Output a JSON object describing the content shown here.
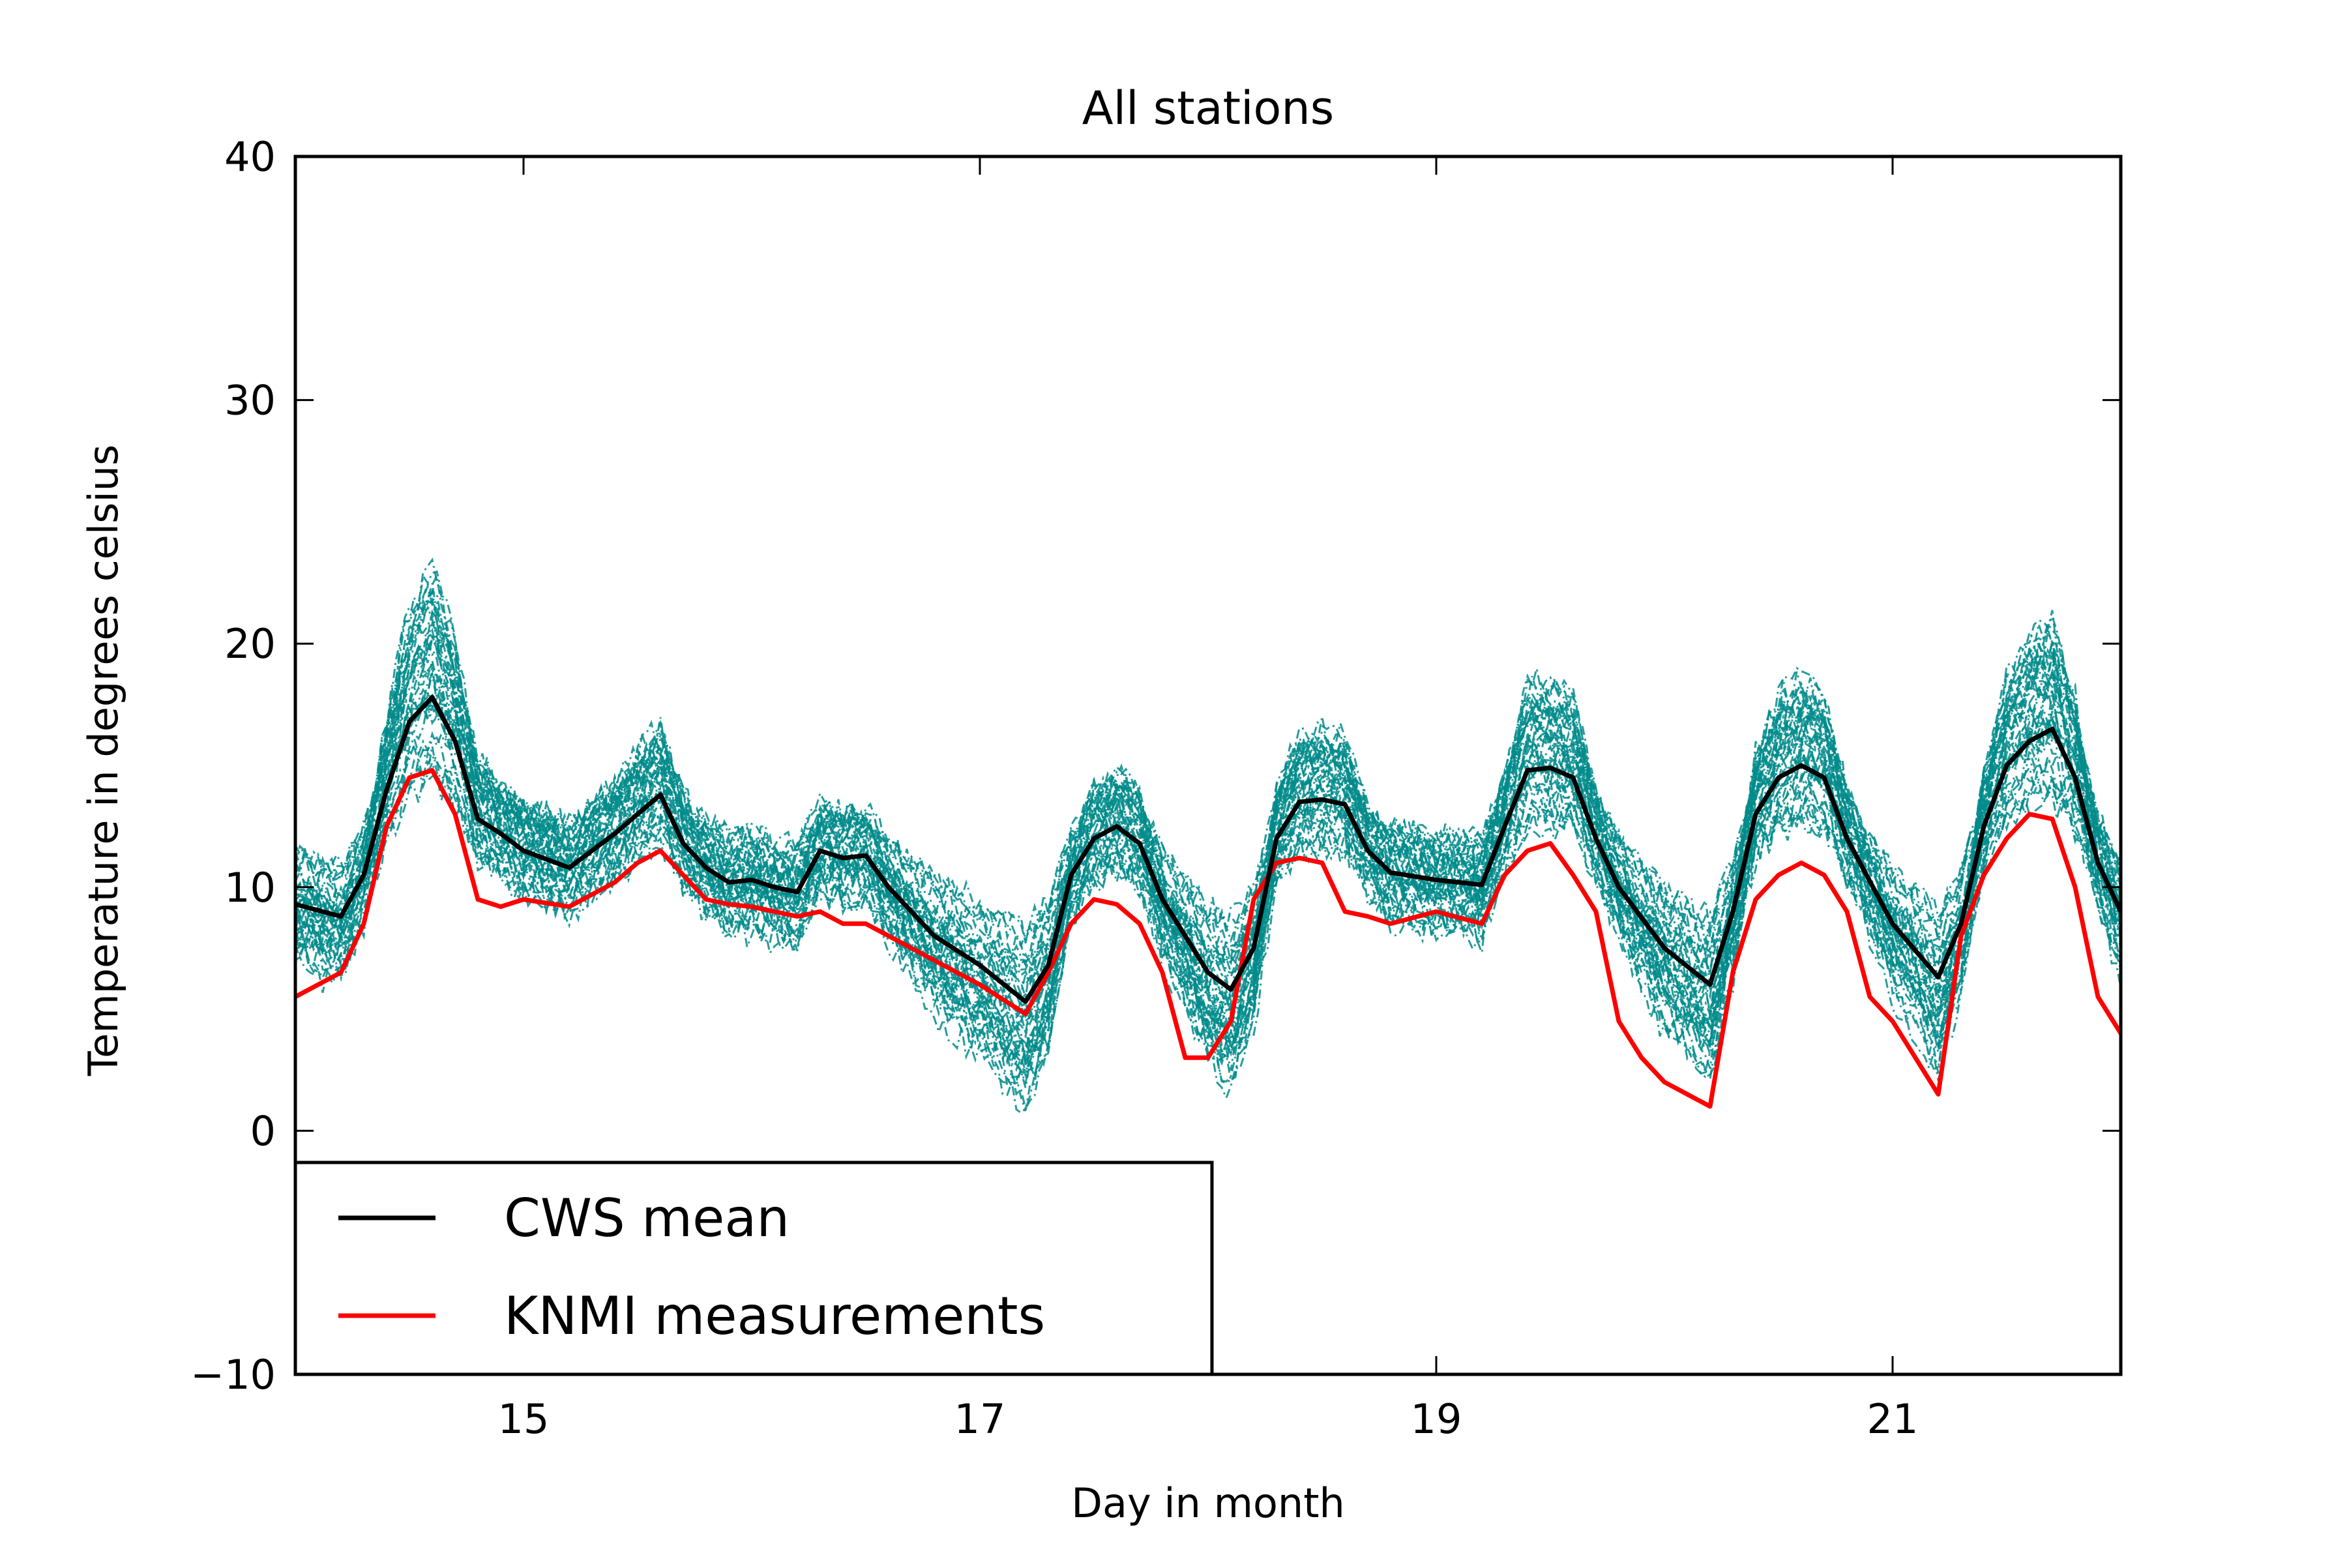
{
  "chart_data": {
    "type": "line",
    "title": "All stations",
    "xlabel": "Day in month",
    "ylabel": "Temperature in degrees celsius",
    "xlim": [
      14,
      22
    ],
    "ylim": [
      -10,
      40
    ],
    "x_ticks": [
      15,
      17,
      19,
      21
    ],
    "x_tick_labels": [
      "15",
      "17",
      "19",
      "21"
    ],
    "y_ticks": [
      -10,
      0,
      10,
      20,
      30,
      40
    ],
    "y_tick_labels": [
      "−10",
      "0",
      "10",
      "20",
      "30",
      "40"
    ],
    "grid": false,
    "legend_position": "lower-left",
    "legend": [
      {
        "label": "CWS mean",
        "color": "#000000"
      },
      {
        "label": "KNMI measurements",
        "color": "#ff0000"
      }
    ],
    "background_series": {
      "description_color": "#008b8b",
      "style": "dash-dot",
      "count": 40
    },
    "series": [
      {
        "name": "CWS mean",
        "color": "#000000",
        "x": [
          14.0,
          14.2,
          14.3,
          14.4,
          14.5,
          14.6,
          14.7,
          14.8,
          14.9,
          15.0,
          15.2,
          15.4,
          15.5,
          15.6,
          15.7,
          15.8,
          15.9,
          16.0,
          16.1,
          16.2,
          16.3,
          16.4,
          16.5,
          16.6,
          16.8,
          17.0,
          17.2,
          17.3,
          17.4,
          17.5,
          17.6,
          17.7,
          17.8,
          18.0,
          18.1,
          18.2,
          18.3,
          18.4,
          18.5,
          18.6,
          18.7,
          18.8,
          19.0,
          19.2,
          19.3,
          19.4,
          19.5,
          19.6,
          19.7,
          19.8,
          20.0,
          20.2,
          20.3,
          20.4,
          20.5,
          20.6,
          20.7,
          20.8,
          21.0,
          21.2,
          21.3,
          21.4,
          21.5,
          21.6,
          21.7,
          21.8,
          21.9,
          22.0
        ],
        "y": [
          9.3,
          8.8,
          10.5,
          14.0,
          16.8,
          17.8,
          16.0,
          12.8,
          12.2,
          11.5,
          10.8,
          12.2,
          13.0,
          13.8,
          11.8,
          10.8,
          10.2,
          10.3,
          10.0,
          9.8,
          11.5,
          11.2,
          11.3,
          10.0,
          8.0,
          6.8,
          5.3,
          6.8,
          10.5,
          12.0,
          12.5,
          11.8,
          9.5,
          6.5,
          5.8,
          7.5,
          12.0,
          13.5,
          13.6,
          13.4,
          11.5,
          10.6,
          10.3,
          10.1,
          12.5,
          14.8,
          14.9,
          14.5,
          12.0,
          10.0,
          7.5,
          6.0,
          9.0,
          13.0,
          14.5,
          15.0,
          14.5,
          12.0,
          8.5,
          6.3,
          8.5,
          12.5,
          15.0,
          16.0,
          16.5,
          14.5,
          11.0,
          9.0
        ]
      },
      {
        "name": "KNMI measurements",
        "color": "#ff0000",
        "x": [
          14.0,
          14.2,
          14.3,
          14.4,
          14.5,
          14.6,
          14.7,
          14.8,
          14.9,
          15.0,
          15.2,
          15.4,
          15.5,
          15.6,
          15.7,
          15.8,
          15.9,
          16.0,
          16.1,
          16.2,
          16.3,
          16.4,
          16.5,
          16.6,
          16.8,
          17.0,
          17.2,
          17.3,
          17.4,
          17.5,
          17.6,
          17.7,
          17.8,
          17.9,
          18.0,
          18.1,
          18.2,
          18.3,
          18.4,
          18.5,
          18.6,
          18.7,
          18.8,
          19.0,
          19.2,
          19.3,
          19.4,
          19.5,
          19.6,
          19.7,
          19.8,
          19.9,
          20.0,
          20.2,
          20.3,
          20.4,
          20.5,
          20.6,
          20.7,
          20.8,
          20.9,
          21.0,
          21.1,
          21.2,
          21.3,
          21.4,
          21.5,
          21.6,
          21.7,
          21.8,
          21.9,
          22.0
        ],
        "y": [
          5.5,
          6.5,
          8.5,
          12.5,
          14.5,
          14.8,
          13.0,
          9.5,
          9.2,
          9.5,
          9.2,
          10.2,
          11.0,
          11.5,
          10.5,
          9.5,
          9.3,
          9.2,
          9.0,
          8.8,
          9.0,
          8.5,
          8.5,
          8.0,
          7.0,
          6.0,
          4.8,
          6.5,
          8.5,
          9.5,
          9.3,
          8.5,
          6.5,
          3.0,
          3.0,
          4.5,
          9.5,
          11.0,
          11.2,
          11.0,
          9.0,
          8.8,
          8.5,
          9.0,
          8.5,
          10.5,
          11.5,
          11.8,
          10.5,
          9.0,
          4.5,
          3.0,
          2.0,
          1.0,
          6.5,
          9.5,
          10.5,
          11.0,
          10.5,
          9.0,
          5.5,
          4.5,
          3.0,
          1.5,
          8.0,
          10.5,
          12.0,
          13.0,
          12.8,
          10.0,
          5.5,
          4.0
        ]
      }
    ]
  }
}
